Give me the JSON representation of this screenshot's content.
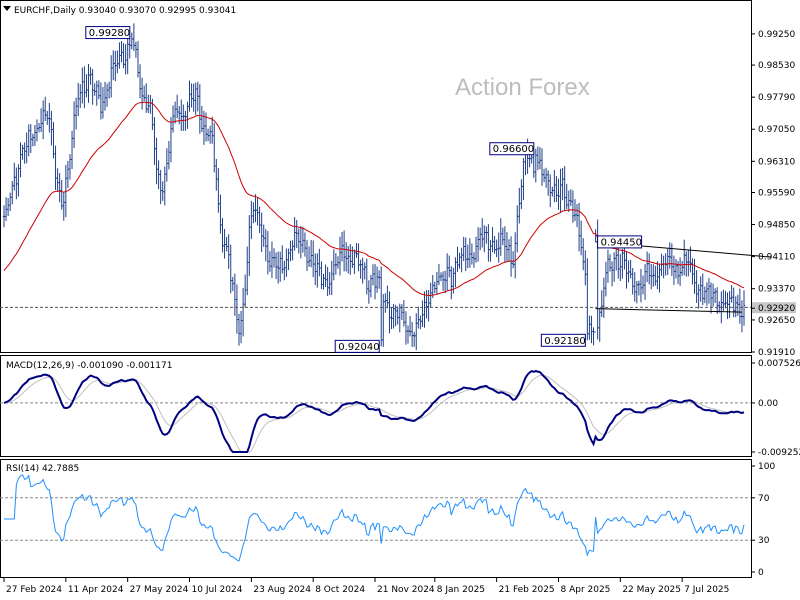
{
  "watermark": "Action Forex",
  "chart_data": [
    {
      "panel": "price",
      "type": "ohlc",
      "title": "EURCHF,Daily  0.93040 0.93070 0.92995 0.93041",
      "ylim": [
        0.9191,
        0.9957
      ],
      "ticks": [
        "0.92920",
        "0.92650",
        "0.93370",
        "0.94110",
        "0.94850",
        "0.95590",
        "0.96310",
        "0.97050",
        "0.97790",
        "0.98530",
        "0.99250",
        "0.91910"
      ],
      "current_price": "0.92920",
      "x_labels": [
        "27 Feb 2024",
        "11 Apr 2024",
        "27 May 2024",
        "10 Jul 2024",
        "23 Aug 2024",
        "8 Oct 2024",
        "21 Nov 2024",
        "8 Jan 2025",
        "21 Feb 2025",
        "8 Apr 2025",
        "22 May 2025",
        "7 Jul 2025"
      ],
      "anchors": [
        {
          "i": 0,
          "v": 0.95
        },
        {
          "i": 10,
          "v": 0.966
        },
        {
          "i": 20,
          "v": 0.974
        },
        {
          "i": 28,
          "v": 0.955
        },
        {
          "i": 38,
          "v": 0.981
        },
        {
          "i": 48,
          "v": 0.978
        },
        {
          "i": 57,
          "v": 0.988
        },
        {
          "i": 62,
          "v": 0.99
        },
        {
          "i": 69,
          "v": 0.977
        },
        {
          "i": 76,
          "v": 0.958
        },
        {
          "i": 84,
          "v": 0.974
        },
        {
          "i": 92,
          "v": 0.977
        },
        {
          "i": 99,
          "v": 0.97
        },
        {
          "i": 107,
          "v": 0.945
        },
        {
          "i": 114,
          "v": 0.925
        },
        {
          "i": 121,
          "v": 0.951
        },
        {
          "i": 132,
          "v": 0.938
        },
        {
          "i": 142,
          "v": 0.945
        },
        {
          "i": 155,
          "v": 0.936
        },
        {
          "i": 166,
          "v": 0.942
        },
        {
          "i": 178,
          "v": 0.936
        },
        {
          "i": 190,
          "v": 0.928
        },
        {
          "i": 199,
          "v": 0.924
        },
        {
          "i": 210,
          "v": 0.935
        },
        {
          "i": 222,
          "v": 0.94
        },
        {
          "i": 234,
          "v": 0.945
        },
        {
          "i": 246,
          "v": 0.942
        },
        {
          "i": 254,
          "v": 0.964
        },
        {
          "i": 266,
          "v": 0.958
        },
        {
          "i": 276,
          "v": 0.953
        },
        {
          "i": 286,
          "v": 0.924
        },
        {
          "i": 296,
          "v": 0.941
        },
        {
          "i": 306,
          "v": 0.935
        },
        {
          "i": 318,
          "v": 0.938
        },
        {
          "i": 330,
          "v": 0.939
        },
        {
          "i": 342,
          "v": 0.932
        },
        {
          "i": 352,
          "v": 0.93
        },
        {
          "i": 359,
          "v": 0.93
        }
      ],
      "annotations": [
        {
          "text": "0.99280",
          "i": 62,
          "v": 0.9928,
          "pos": "left"
        },
        {
          "text": "0.92040",
          "i": 183,
          "v": 0.9204,
          "pos": "left"
        },
        {
          "text": "0.96600",
          "i": 258,
          "v": 0.966,
          "pos": "left"
        },
        {
          "text": "0.94450",
          "i": 287,
          "v": 0.9445,
          "pos": "right"
        },
        {
          "text": "0.92180",
          "i": 283,
          "v": 0.9218,
          "pos": "left"
        }
      ],
      "trendlines": [
        {
          "from": {
            "i": 287,
            "v": 0.9445
          },
          "to": {
            "i": 372,
            "v": 0.941
          }
        },
        {
          "from": {
            "i": 287,
            "v": 0.9291
          },
          "to": {
            "i": 358,
            "v": 0.9283
          }
        }
      ],
      "ma_color": "#d00000",
      "bar_color": "#1f3f8a"
    },
    {
      "panel": "macd",
      "type": "line",
      "title": "MACD(12,26,9) -0.001090 -0.001171",
      "ylim": [
        -0.00925,
        0.007526
      ],
      "ticks": [
        "0.007526",
        "0.00",
        "-0.009252"
      ],
      "series_colors": [
        "#000080",
        "#c0c0c0"
      ]
    },
    {
      "panel": "rsi",
      "type": "line",
      "title": "RSI(14) 42.7885",
      "ylim": [
        0,
        100
      ],
      "ticks": [
        "100",
        "70",
        "30",
        "0"
      ],
      "levels": [
        70,
        30
      ],
      "line_color": "#1e90ff"
    }
  ]
}
